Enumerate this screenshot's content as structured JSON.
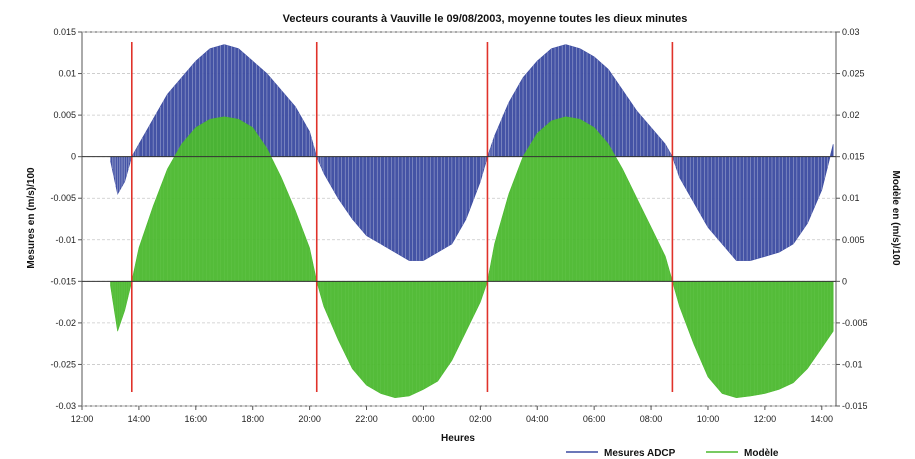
{
  "chart_data": {
    "type": "area",
    "title": "Vecteurs courants à Vauville le 09/08/2003, moyenne toutes les dieux minutes",
    "xlabel": "Heures",
    "ylabel_left": "Mesures en (m/s)/100",
    "ylabel_right": "Modèle en (m/s)/100",
    "x_ticks": [
      "12:00",
      "14:00",
      "16:00",
      "18:00",
      "20:00",
      "22:00",
      "00:00",
      "02:00",
      "04:00",
      "06:00",
      "08:00",
      "10:00",
      "12:00",
      "14:00"
    ],
    "y_left_ticks": [
      "0.015",
      "0.01",
      "0.005",
      "0",
      "-0.005",
      "-0.01",
      "-0.015",
      "-0.02",
      "-0.025",
      "-0.03"
    ],
    "y_left_range": [
      -0.03,
      0.015
    ],
    "y_right_ticks": [
      "0.03",
      "0.025",
      "0.02",
      "0.015",
      "0.01",
      "0.005",
      "0",
      "-0.005",
      "-0.01",
      "-0.015"
    ],
    "y_right_range": [
      -0.015,
      0.03
    ],
    "grid": true,
    "slack_water_lines_hours": [
      13.75,
      20.25,
      26.25,
      32.75
    ],
    "series": [
      {
        "name": "Mesures ADCP",
        "color": "#3a4aa0",
        "baseline": 0,
        "axis": "left",
        "x_hours": [
          13.0,
          13.25,
          13.5,
          13.75,
          14.0,
          14.5,
          15.0,
          15.5,
          16.0,
          16.5,
          17.0,
          17.5,
          18.0,
          18.5,
          19.0,
          19.5,
          20.0,
          20.25,
          20.5,
          21.0,
          21.5,
          22.0,
          22.5,
          23.0,
          23.5,
          24.0,
          24.5,
          25.0,
          25.5,
          26.0,
          26.25,
          26.5,
          27.0,
          27.5,
          28.0,
          28.5,
          29.0,
          29.5,
          30.0,
          30.5,
          31.0,
          31.5,
          32.0,
          32.5,
          32.75,
          33.0,
          33.5,
          34.0,
          34.5,
          35.0,
          35.5,
          36.0,
          36.5,
          37.0,
          37.5,
          38.0,
          38.4
        ],
        "values": [
          -0.0005,
          -0.0045,
          -0.003,
          0.0,
          0.0015,
          0.0045,
          0.0075,
          0.0095,
          0.0115,
          0.013,
          0.0135,
          0.013,
          0.0115,
          0.01,
          0.008,
          0.006,
          0.003,
          0.0,
          -0.002,
          -0.005,
          -0.0075,
          -0.0095,
          -0.0105,
          -0.0115,
          -0.0125,
          -0.0125,
          -0.0115,
          -0.0105,
          -0.0075,
          -0.003,
          0.0,
          0.0025,
          0.0065,
          0.0095,
          0.0115,
          0.013,
          0.0135,
          0.013,
          0.012,
          0.0105,
          0.008,
          0.0055,
          0.0035,
          0.0015,
          0.0,
          -0.0025,
          -0.0055,
          -0.0085,
          -0.0105,
          -0.0125,
          -0.0125,
          -0.012,
          -0.0115,
          -0.0105,
          -0.008,
          -0.004,
          0.0015
        ]
      },
      {
        "name": "Modèle",
        "color": "#4bb82e",
        "baseline": 0,
        "axis": "right",
        "x_hours": [
          13.0,
          13.25,
          13.5,
          13.75,
          14.0,
          14.5,
          15.0,
          15.5,
          16.0,
          16.5,
          17.0,
          17.5,
          18.0,
          18.5,
          19.0,
          19.5,
          20.0,
          20.25,
          20.5,
          21.0,
          21.5,
          22.0,
          22.5,
          23.0,
          23.5,
          24.0,
          24.5,
          25.0,
          25.5,
          26.0,
          26.25,
          26.5,
          27.0,
          27.5,
          28.0,
          28.5,
          29.0,
          29.5,
          30.0,
          30.5,
          31.0,
          31.5,
          32.0,
          32.5,
          32.75,
          33.0,
          33.5,
          34.0,
          34.5,
          35.0,
          35.5,
          36.0,
          36.5,
          37.0,
          37.5,
          38.0,
          38.4
        ],
        "values": [
          -0.0005,
          -0.006,
          -0.0035,
          0.0,
          0.004,
          0.009,
          0.0135,
          0.0165,
          0.0185,
          0.0195,
          0.0198,
          0.0195,
          0.0185,
          0.016,
          0.0125,
          0.0085,
          0.004,
          0.0,
          -0.003,
          -0.007,
          -0.0105,
          -0.0125,
          -0.0135,
          -0.014,
          -0.0138,
          -0.013,
          -0.012,
          -0.0095,
          -0.006,
          -0.0025,
          0.0,
          0.0045,
          0.0105,
          0.015,
          0.0178,
          0.0193,
          0.0198,
          0.0195,
          0.0185,
          0.0165,
          0.0135,
          0.01,
          0.0065,
          0.003,
          0.0,
          -0.003,
          -0.0075,
          -0.0115,
          -0.0135,
          -0.014,
          -0.0138,
          -0.0135,
          -0.013,
          -0.0122,
          -0.0105,
          -0.008,
          -0.006
        ]
      }
    ],
    "legend": {
      "placement": "bottom-right"
    }
  }
}
